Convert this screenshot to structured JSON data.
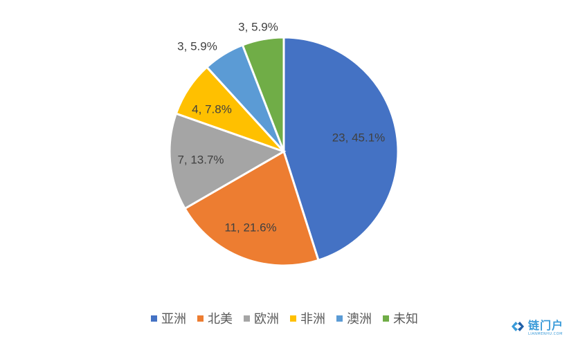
{
  "chart_data": {
    "type": "pie",
    "title": "",
    "categories": [
      "亚洲",
      "北美",
      "欧洲",
      "非洲",
      "澳洲",
      "未知"
    ],
    "values": [
      23,
      11,
      7,
      4,
      3,
      3
    ],
    "percent_labels": [
      "45.1%",
      "21.6%",
      "13.7%",
      "7.8%",
      "5.9%",
      "5.9%"
    ],
    "data_labels": [
      "23, 45.1%",
      "11, 21.6%",
      "7, 13.7%",
      "4, 7.8%",
      "3, 5.9%",
      "3, 5.9%"
    ],
    "colors": [
      "#4472c4",
      "#ed7d31",
      "#a5a5a5",
      "#ffc000",
      "#5b9bd5",
      "#70ad47"
    ],
    "start_angle": "12 o'clock, clockwise",
    "legend_position": "bottom"
  },
  "watermark": {
    "name": "链门户",
    "sub": "LIANMENHU.COM",
    "icon": "chain-link-logo-icon"
  }
}
